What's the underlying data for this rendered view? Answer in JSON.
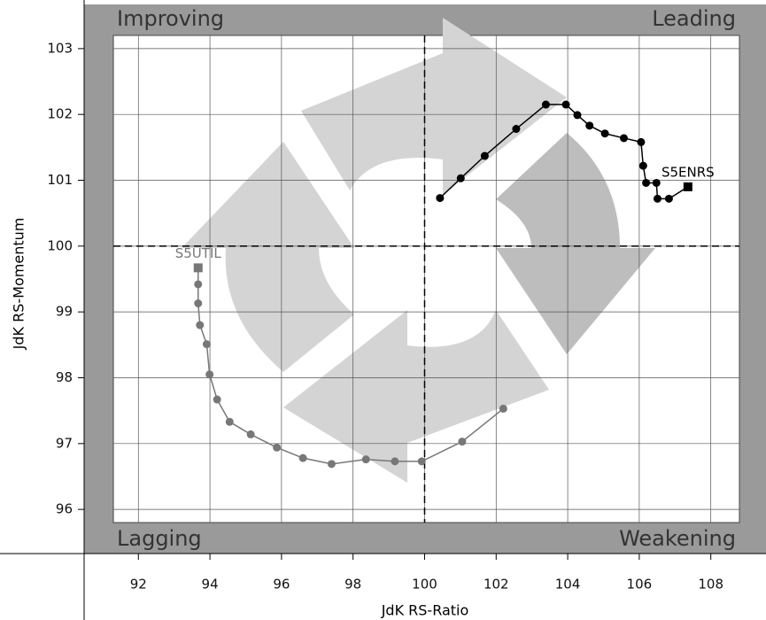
{
  "chart_data": {
    "type": "rrg",
    "x_label": "JdK RS-Ratio",
    "y_label": "JdK RS-Momentum",
    "quadrants": [
      "Improving",
      "Leading",
      "Lagging",
      "Weakening"
    ],
    "xlim": [
      91.3,
      108.8
    ],
    "ylim": [
      95.8,
      103.2
    ],
    "xticks": [
      92,
      94,
      96,
      98,
      100,
      102,
      104,
      106,
      108
    ],
    "yticks": [
      96,
      97,
      98,
      99,
      100,
      101,
      102,
      103
    ],
    "center": [
      100,
      100
    ],
    "grid": true,
    "series": [
      {
        "name": "S5ENRS",
        "color": "#000000",
        "x": [
          100.43,
          101.01,
          101.68,
          102.56,
          103.39,
          103.95,
          104.27,
          104.61,
          105.04,
          105.57,
          106.05,
          106.11,
          106.19,
          106.48,
          106.51,
          106.83,
          107.36
        ],
        "values": [
          100.73,
          101.03,
          101.37,
          101.78,
          102.15,
          102.15,
          101.99,
          101.83,
          101.71,
          101.64,
          101.58,
          101.22,
          100.96,
          100.96,
          100.72,
          100.72,
          100.9
        ]
      },
      {
        "name": "S5UTIL",
        "color": "#777777",
        "x": [
          102.2,
          101.05,
          99.92,
          99.17,
          98.36,
          97.4,
          96.6,
          95.87,
          95.14,
          94.55,
          94.2,
          93.99,
          93.91,
          93.72,
          93.67,
          93.67,
          93.67
        ],
        "values": [
          97.53,
          97.03,
          96.73,
          96.73,
          96.76,
          96.69,
          96.78,
          96.94,
          97.14,
          97.33,
          97.67,
          98.05,
          98.51,
          98.8,
          99.13,
          99.42,
          99.67
        ]
      }
    ]
  }
}
